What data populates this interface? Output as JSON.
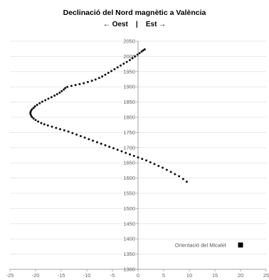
{
  "chart_data": {
    "type": "scatter",
    "title": "Declinació del Nord magnètic a València",
    "subtitle": "← Oest    |    Est →",
    "xlabel": "",
    "ylabel": "",
    "xlim": [
      -25,
      25
    ],
    "ylim": [
      1300,
      2050
    ],
    "x_ticks": [
      "-25",
      "-20",
      "-15",
      "-10",
      "-5",
      "0",
      "5",
      "10",
      "15",
      "20",
      "25"
    ],
    "y_ticks": [
      "1300",
      "1350",
      "1400",
      "1450",
      "1500",
      "1550",
      "1600",
      "1650",
      "1700",
      "1750",
      "1800",
      "1850",
      "1900",
      "1950",
      "2000",
      "2050"
    ],
    "grid": "horizontal",
    "legend_position": "bottom-right",
    "series": [
      {
        "name": "",
        "color": "#111111",
        "points": [
          [
            9.5,
            1588
          ],
          [
            8.8,
            1597
          ],
          [
            8.0,
            1606
          ],
          [
            7.2,
            1613
          ],
          [
            6.4,
            1620
          ],
          [
            5.6,
            1627
          ],
          [
            4.8,
            1634
          ],
          [
            4.0,
            1640
          ],
          [
            3.2,
            1646
          ],
          [
            2.4,
            1652
          ],
          [
            1.6,
            1658
          ],
          [
            0.8,
            1663
          ],
          [
            0.0,
            1668
          ],
          [
            -0.8,
            1673
          ],
          [
            -1.6,
            1678
          ],
          [
            -2.4,
            1683
          ],
          [
            -3.2,
            1688
          ],
          [
            -4.0,
            1693
          ],
          [
            -4.8,
            1698
          ],
          [
            -5.6,
            1703
          ],
          [
            -6.4,
            1708
          ],
          [
            -7.2,
            1713
          ],
          [
            -8.0,
            1718
          ],
          [
            -8.8,
            1723
          ],
          [
            -9.6,
            1728
          ],
          [
            -10.4,
            1733
          ],
          [
            -11.2,
            1738
          ],
          [
            -12.0,
            1743
          ],
          [
            -12.8,
            1748
          ],
          [
            -13.6,
            1753
          ],
          [
            -14.4,
            1757
          ],
          [
            -15.2,
            1761
          ],
          [
            -16.0,
            1765
          ],
          [
            -16.8,
            1769
          ],
          [
            -17.6,
            1773
          ],
          [
            -18.3,
            1777
          ],
          [
            -18.9,
            1781
          ],
          [
            -19.5,
            1786
          ],
          [
            -20.0,
            1791
          ],
          [
            -20.4,
            1796
          ],
          [
            -20.7,
            1801
          ],
          [
            -20.9,
            1806
          ],
          [
            -21.0,
            1811
          ],
          [
            -21.0,
            1816
          ],
          [
            -20.9,
            1821
          ],
          [
            -20.7,
            1826
          ],
          [
            -20.4,
            1831
          ],
          [
            -20.1,
            1836
          ],
          [
            -19.7,
            1841
          ],
          [
            -19.2,
            1846
          ],
          [
            -18.7,
            1851
          ],
          [
            -18.1,
            1856
          ],
          [
            -17.5,
            1861
          ],
          [
            -16.9,
            1866
          ],
          [
            -16.3,
            1871
          ],
          [
            -15.8,
            1876
          ],
          [
            -15.3,
            1881
          ],
          [
            -14.9,
            1886
          ],
          [
            -14.5,
            1891
          ],
          [
            -14.2,
            1896
          ],
          [
            -13.8,
            1900
          ],
          [
            -13.0,
            1903
          ],
          [
            -12.2,
            1906
          ],
          [
            -11.4,
            1909
          ],
          [
            -10.6,
            1912
          ],
          [
            -9.8,
            1916
          ],
          [
            -9.0,
            1920
          ],
          [
            -8.3,
            1924
          ],
          [
            -7.6,
            1929
          ],
          [
            -7.0,
            1934
          ],
          [
            -6.4,
            1940
          ],
          [
            -5.8,
            1946
          ],
          [
            -5.2,
            1952
          ],
          [
            -4.6,
            1958
          ],
          [
            -4.0,
            1964
          ],
          [
            -3.4,
            1970
          ],
          [
            -2.8,
            1976
          ],
          [
            -2.2,
            1982
          ],
          [
            -1.6,
            1988
          ],
          [
            -1.1,
            1994
          ],
          [
            -0.6,
            2000
          ],
          [
            -0.1,
            2006
          ],
          [
            0.3,
            2011
          ],
          [
            0.7,
            2016
          ],
          [
            1.0,
            2020
          ],
          [
            1.3,
            2023
          ]
        ]
      }
    ],
    "marker": {
      "label": "Orientació del Micalet",
      "x": 20,
      "y": 1380,
      "color": "#000000"
    }
  }
}
